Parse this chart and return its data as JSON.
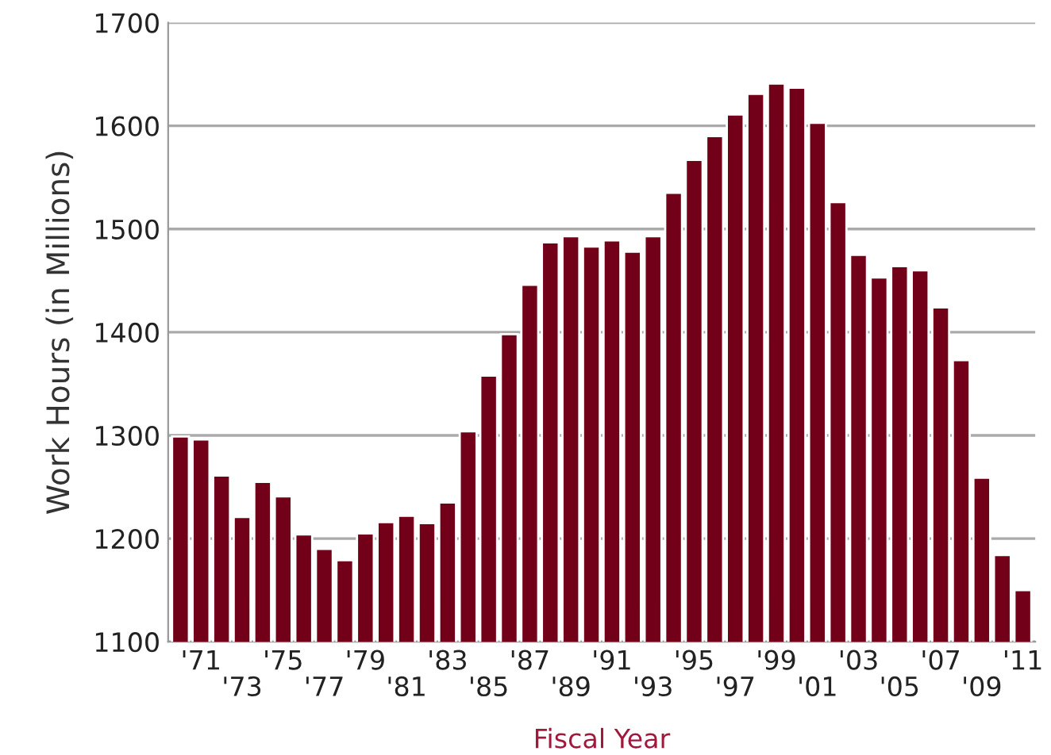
{
  "chart_data": {
    "type": "bar",
    "xlabel": "Fiscal Year",
    "ylabel": "Work Hours (in Millions)",
    "categories": [
      null,
      "'71",
      null,
      "'73",
      null,
      "'75",
      null,
      "'77",
      null,
      "'79",
      null,
      "'81",
      null,
      "'83",
      null,
      "'85",
      null,
      "'87",
      null,
      "'89",
      null,
      "'91",
      null,
      "'93",
      null,
      "'95",
      null,
      "'97",
      null,
      "'99",
      null,
      "'01",
      null,
      "'03",
      null,
      "'05",
      null,
      "'07",
      null,
      "'09",
      null,
      "'11"
    ],
    "values": [
      1299,
      1296,
      1261,
      1221,
      1255,
      1241,
      1204,
      1190,
      1179,
      1205,
      1216,
      1222,
      1215,
      1235,
      1304,
      1358,
      1398,
      1446,
      1487,
      1493,
      1483,
      1489,
      1478,
      1493,
      1535,
      1567,
      1590,
      1611,
      1631,
      1641,
      1637,
      1603,
      1526,
      1475,
      1453,
      1464,
      1460,
      1424,
      1373,
      1259,
      1184,
      1150
    ],
    "color": "#730019",
    "ylim": [
      1100,
      1700
    ],
    "yticks": [
      1100,
      1200,
      1300,
      1400,
      1500,
      1600,
      1700
    ],
    "grid": "y",
    "legend": false
  }
}
